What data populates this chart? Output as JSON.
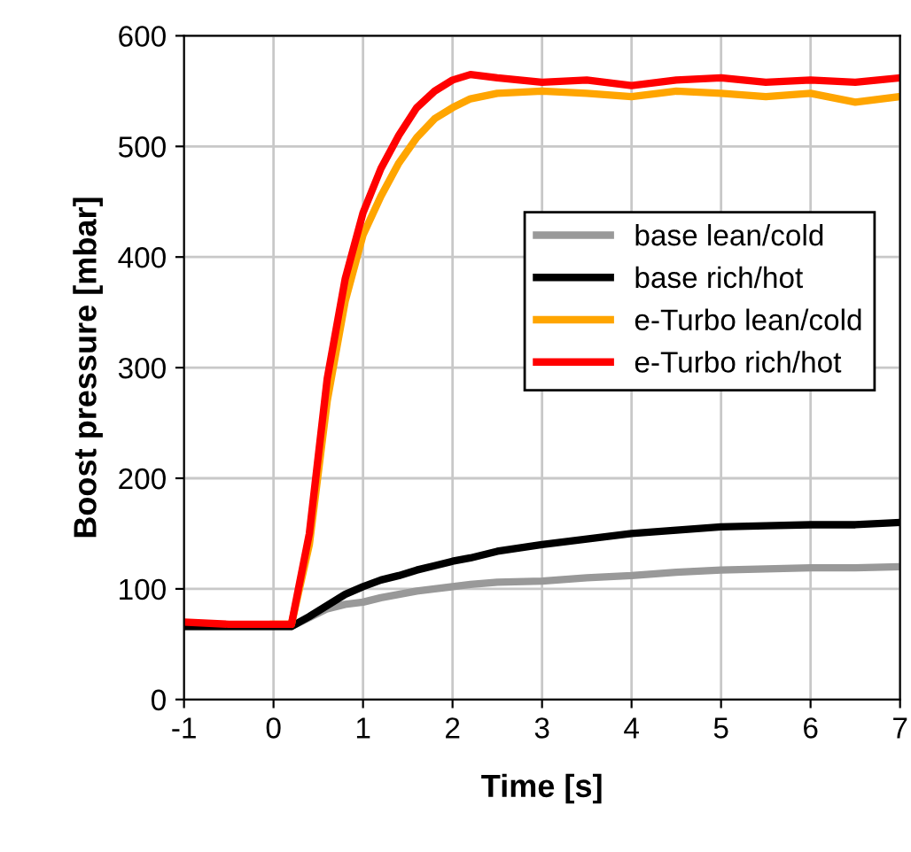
{
  "chart_data": {
    "type": "line",
    "xlabel": "Time [s]",
    "ylabel": "Boost pressure [mbar]",
    "x": [
      -1,
      -0.5,
      0,
      0.2,
      0.4,
      0.6,
      0.8,
      1.0,
      1.2,
      1.4,
      1.6,
      1.8,
      2.0,
      2.2,
      2.5,
      3,
      3.5,
      4,
      4.5,
      5,
      5.5,
      6,
      6.5,
      7
    ],
    "series": [
      {
        "name": "base lean/cold",
        "color": "#999999",
        "values": [
          66,
          66,
          66,
          66,
          74,
          82,
          86,
          88,
          92,
          95,
          98,
          100,
          102,
          104,
          106,
          107,
          110,
          112,
          115,
          117,
          118,
          119,
          119,
          120
        ]
      },
      {
        "name": "base rich/hot",
        "color": "#000000",
        "values": [
          66,
          66,
          66,
          66,
          75,
          85,
          95,
          102,
          108,
          112,
          117,
          121,
          125,
          128,
          134,
          140,
          145,
          150,
          153,
          156,
          157,
          158,
          158,
          160
        ]
      },
      {
        "name": "e-Turbo lean/cold",
        "color": "#ffa500",
        "values": [
          null,
          null,
          68,
          68,
          140,
          270,
          360,
          420,
          455,
          485,
          508,
          525,
          535,
          543,
          548,
          550,
          548,
          545,
          550,
          548,
          545,
          548,
          540,
          545
        ]
      },
      {
        "name": "e-Turbo rich/hot",
        "color": "#ff0000",
        "values": [
          70,
          68,
          68,
          68,
          150,
          290,
          380,
          440,
          480,
          510,
          535,
          550,
          560,
          565,
          562,
          558,
          560,
          555,
          560,
          562,
          558,
          560,
          558,
          562
        ]
      }
    ],
    "xlim": [
      -1,
      7
    ],
    "xticks": [
      -1,
      0,
      1,
      2,
      3,
      4,
      5,
      6,
      7
    ],
    "ylim": [
      0,
      600
    ],
    "yticks": [
      0,
      100,
      200,
      300,
      400,
      500,
      600
    ],
    "grid": true,
    "legend": "right",
    "marker": "none",
    "line_style": "solid"
  }
}
